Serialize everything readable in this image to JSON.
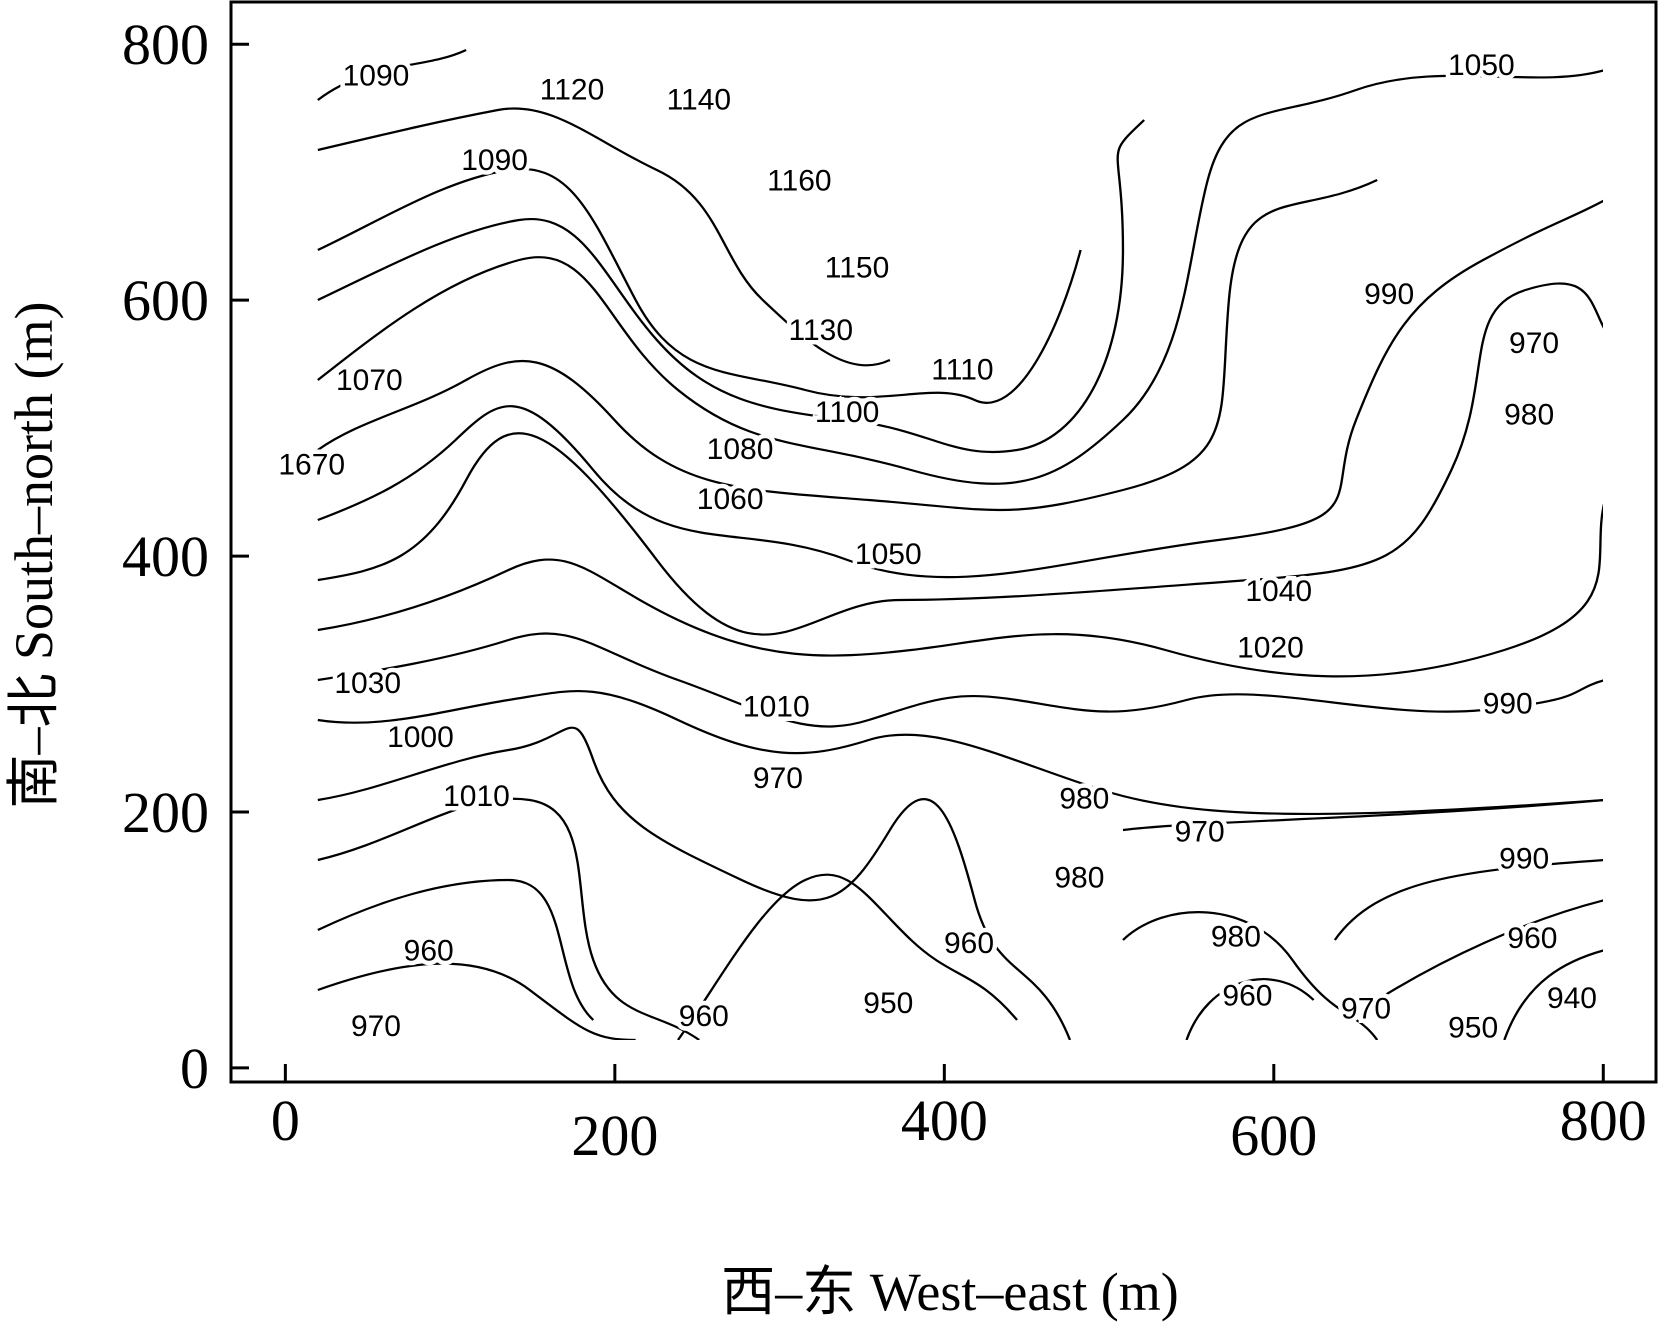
{
  "chart_data": {
    "type": "contour",
    "x_label": "西–东 West–east (m)",
    "y_label": "南–北 South–north (m)",
    "xlim": [
      -33,
      832
    ],
    "ylim": [
      -11,
      833
    ],
    "xticks": [
      0,
      200,
      400,
      600,
      800
    ],
    "yticks": [
      0,
      200,
      400,
      600,
      800
    ],
    "line_color": "#000000",
    "contour_labels": [
      {
        "value": 1090,
        "x": 55,
        "y": 774
      },
      {
        "value": 1120,
        "x": 174,
        "y": 763
      },
      {
        "value": 1140,
        "x": 251,
        "y": 755
      },
      {
        "value": 1160,
        "x": 312,
        "y": 692
      },
      {
        "value": 1150,
        "x": 347,
        "y": 624
      },
      {
        "value": 1130,
        "x": 325,
        "y": 575
      },
      {
        "value": 1110,
        "x": 411,
        "y": 544
      },
      {
        "value": 1100,
        "x": 341,
        "y": 511
      },
      {
        "value": 1090,
        "x": 127,
        "y": 708
      },
      {
        "value": 1070,
        "x": 51,
        "y": 536
      },
      {
        "value": 1670,
        "x": 16,
        "y": 470
      },
      {
        "value": 1080,
        "x": 276,
        "y": 482
      },
      {
        "value": 1060,
        "x": 270,
        "y": 443
      },
      {
        "value": 1050,
        "x": 366,
        "y": 400
      },
      {
        "value": 1040,
        "x": 603,
        "y": 371
      },
      {
        "value": 1020,
        "x": 598,
        "y": 327
      },
      {
        "value": 1010,
        "x": 298,
        "y": 281
      },
      {
        "value": 1030,
        "x": 50,
        "y": 299
      },
      {
        "value": 1000,
        "x": 82,
        "y": 257
      },
      {
        "value": 1010,
        "x": 116,
        "y": 211
      },
      {
        "value": 970,
        "x": 299,
        "y": 225
      },
      {
        "value": 980,
        "x": 485,
        "y": 209
      },
      {
        "value": 970,
        "x": 555,
        "y": 183
      },
      {
        "value": 990,
        "x": 742,
        "y": 283
      },
      {
        "value": 990,
        "x": 670,
        "y": 603
      },
      {
        "value": 970,
        "x": 758,
        "y": 565
      },
      {
        "value": 980,
        "x": 755,
        "y": 509
      },
      {
        "value": 1050,
        "x": 726,
        "y": 782
      },
      {
        "value": 990,
        "x": 752,
        "y": 162
      },
      {
        "value": 980,
        "x": 482,
        "y": 147
      },
      {
        "value": 960,
        "x": 87,
        "y": 90
      },
      {
        "value": 960,
        "x": 415,
        "y": 96
      },
      {
        "value": 980,
        "x": 577,
        "y": 101
      },
      {
        "value": 960,
        "x": 757,
        "y": 100
      },
      {
        "value": 950,
        "x": 366,
        "y": 49
      },
      {
        "value": 960,
        "x": 584,
        "y": 55
      },
      {
        "value": 970,
        "x": 656,
        "y": 45
      },
      {
        "value": 950,
        "x": 721,
        "y": 30
      },
      {
        "value": 940,
        "x": 781,
        "y": 53
      },
      {
        "value": 960,
        "x": 254,
        "y": 39
      },
      {
        "value": 970,
        "x": 55,
        "y": 31
      }
    ]
  }
}
